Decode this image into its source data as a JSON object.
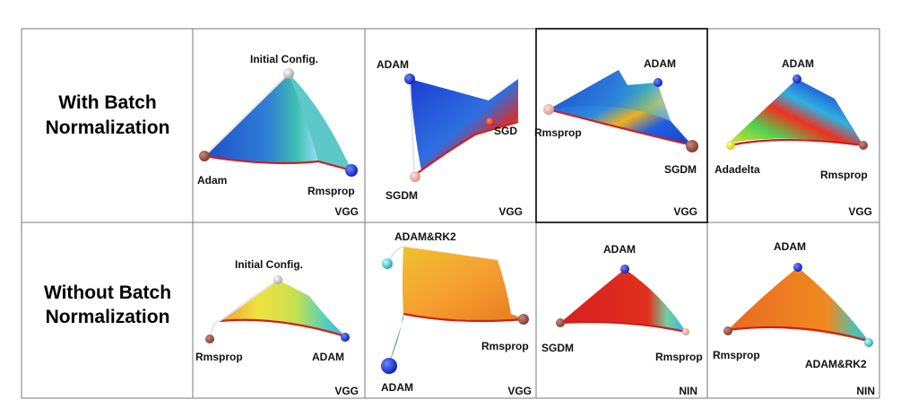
{
  "row_labels": [
    {
      "line1": "With Batch",
      "line2": "Normalization"
    },
    {
      "line1": "Without Batch",
      "line2": "Normalization"
    }
  ],
  "panels": [
    {
      "network": "VGG",
      "labels": [
        "Initial Config.",
        "Adam",
        "Rmsprop"
      ]
    },
    {
      "network": "VGG",
      "labels": [
        "ADAM",
        "SGD",
        "SGDM"
      ]
    },
    {
      "network": "VGG",
      "labels": [
        "ADAM",
        "Rmsprop",
        "SGDM"
      ]
    },
    {
      "network": "VGG",
      "labels": [
        "ADAM",
        "Adadelta",
        "Rmsprop"
      ]
    },
    {
      "network": "VGG",
      "labels": [
        "Initial Config.",
        "Rmsprop",
        "ADAM"
      ]
    },
    {
      "network": "VGG",
      "labels": [
        "ADAM&RK2",
        "Rmsprop",
        "ADAM"
      ]
    },
    {
      "network": "NIN",
      "labels": [
        "ADAM",
        "SGDM",
        "Rmsprop"
      ]
    },
    {
      "network": "NIN",
      "labels": [
        "ADAM",
        "Rmsprop",
        "ADAM&RK2"
      ]
    }
  ],
  "colors": {
    "grid": "#7a7a7a",
    "highlight_border": "#000000",
    "edge_red": "#d11e1e"
  }
}
